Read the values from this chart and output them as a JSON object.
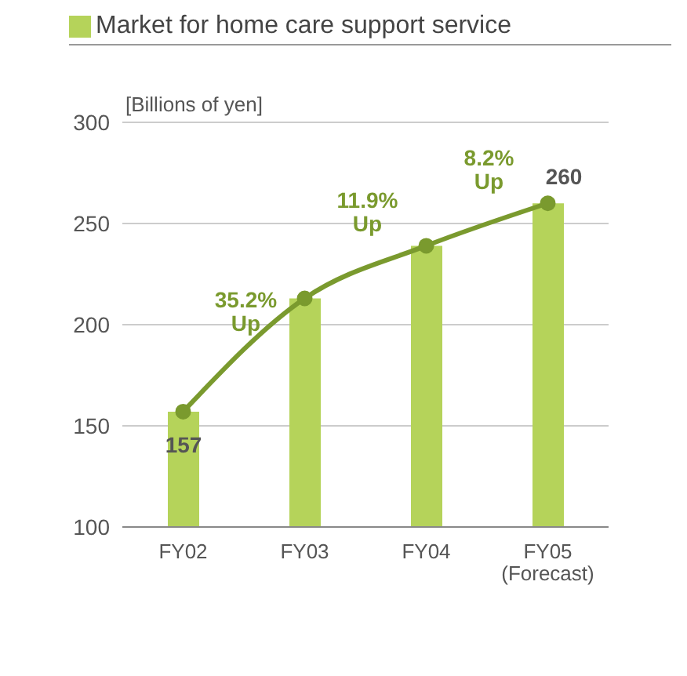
{
  "chart_data": {
    "type": "bar",
    "title": "Market for home care support service",
    "ylabel": "[Billions of yen]",
    "categories": [
      "FY02",
      "FY03",
      "FY04",
      "FY05\n(Forecast)"
    ],
    "series": [
      {
        "color": "#b5d35a",
        "values": [
          157,
          213,
          239,
          260
        ],
        "value_labels": [
          "157",
          null,
          null,
          "260"
        ]
      },
      {
        "type": "line",
        "color": "#7a9a2e",
        "values": [
          157,
          213,
          239,
          260
        ],
        "marker": "circle"
      }
    ],
    "ylim": [
      100,
      300
    ],
    "yticks": [
      100,
      150,
      200,
      250,
      300
    ],
    "grid": "y",
    "annotations": [
      "35.2%\nUp",
      "11.9%\nUp",
      "8.2%\nUp"
    ]
  }
}
